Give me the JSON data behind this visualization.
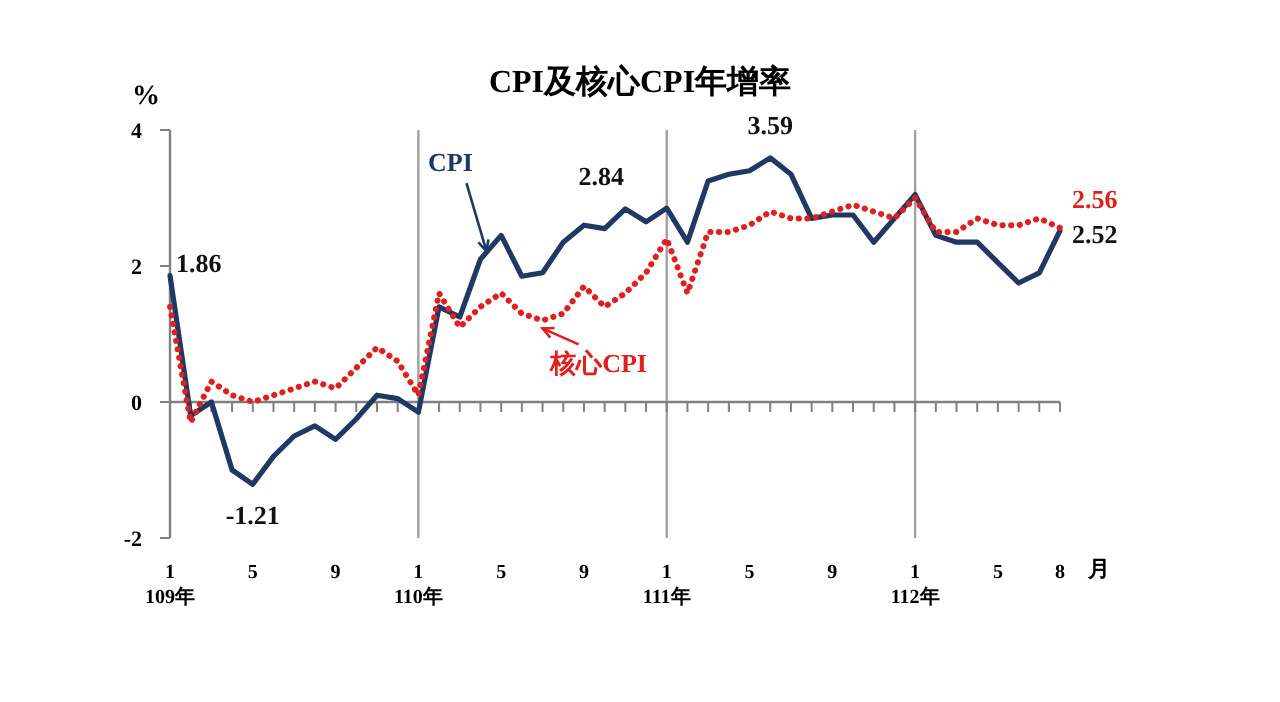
{
  "chart_data": {
    "type": "line",
    "title": "CPI及核心CPI年增率",
    "ylabel": "%",
    "xlabel": "月",
    "categories": [
      "1\n109年",
      null,
      null,
      null,
      "5",
      null,
      null,
      null,
      "9",
      null,
      null,
      null,
      "1\n110年",
      null,
      null,
      null,
      "5",
      null,
      null,
      null,
      "9",
      null,
      null,
      null,
      "1\n111年",
      null,
      null,
      null,
      "5",
      null,
      null,
      null,
      "9",
      null,
      null,
      null,
      "1\n112年",
      null,
      null,
      null,
      "5",
      null,
      null,
      "8"
    ],
    "ylim": [
      -2,
      4
    ],
    "yticks": [
      -2,
      0,
      2,
      4
    ],
    "grid": false,
    "marker": "none",
    "ref_lines": [
      {
        "axis": "x",
        "value": "1\n110年",
        "color": "#a0a0a0"
      },
      {
        "axis": "x",
        "value": "1\n111年",
        "color": "#a0a0a0"
      },
      {
        "axis": "x",
        "value": "1\n112年",
        "color": "#a0a0a0"
      }
    ],
    "series": [
      {
        "name": "CPI",
        "color": "#1f3864",
        "line_style": "solid",
        "values": [
          1.86,
          -0.2,
          0.0,
          -1.0,
          -1.21,
          -0.8,
          -0.5,
          -0.35,
          -0.55,
          -0.25,
          0.1,
          0.05,
          -0.15,
          1.4,
          1.25,
          2.1,
          2.45,
          1.85,
          1.9,
          2.35,
          2.6,
          2.55,
          2.84,
          2.65,
          2.85,
          2.35,
          3.25,
          3.35,
          3.4,
          3.59,
          3.35,
          2.7,
          2.75,
          2.75,
          2.35,
          2.7,
          3.05,
          2.45,
          2.35,
          2.35,
          2.05,
          1.75,
          1.9,
          2.52
        ],
        "value_labels": [
          "1.86",
          null,
          null,
          null,
          "-1.21",
          null,
          null,
          null,
          null,
          null,
          null,
          null,
          null,
          null,
          null,
          null,
          null,
          null,
          null,
          null,
          null,
          null,
          "2.84",
          null,
          null,
          null,
          null,
          null,
          null,
          "3.59",
          null,
          null,
          null,
          null,
          null,
          null,
          null,
          null,
          null,
          null,
          null,
          null,
          null,
          "2.52"
        ]
      },
      {
        "name": "核心CPI",
        "color": "#e0201e",
        "line_style": "dotted",
        "values": [
          1.4,
          -0.3,
          0.3,
          0.1,
          0.0,
          0.1,
          0.2,
          0.3,
          0.2,
          0.5,
          0.8,
          0.6,
          0.1,
          1.6,
          1.1,
          1.4,
          1.6,
          1.3,
          1.2,
          1.3,
          1.7,
          1.4,
          1.6,
          1.9,
          2.4,
          1.6,
          2.5,
          2.5,
          2.6,
          2.8,
          2.7,
          2.7,
          2.8,
          2.9,
          2.8,
          2.7,
          3.0,
          2.5,
          2.5,
          2.7,
          2.6,
          2.6,
          2.7,
          2.56
        ],
        "value_labels": [
          null,
          null,
          null,
          null,
          null,
          null,
          null,
          null,
          null,
          null,
          null,
          null,
          null,
          null,
          null,
          null,
          null,
          null,
          null,
          null,
          null,
          null,
          null,
          null,
          null,
          null,
          null,
          null,
          null,
          null,
          null,
          null,
          null,
          null,
          null,
          null,
          null,
          null,
          null,
          null,
          null,
          null,
          null,
          "2.56"
        ]
      }
    ]
  }
}
